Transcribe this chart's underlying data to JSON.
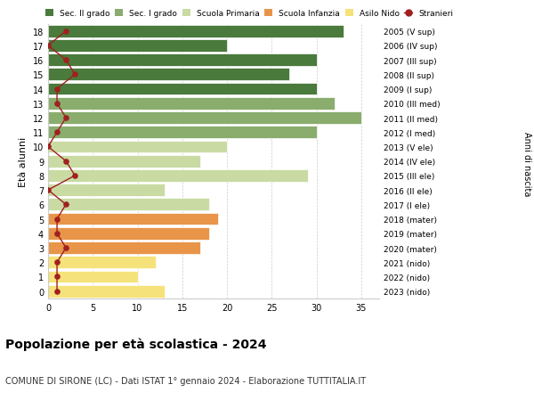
{
  "ages": [
    0,
    1,
    2,
    3,
    4,
    5,
    6,
    7,
    8,
    9,
    10,
    11,
    12,
    13,
    14,
    15,
    16,
    17,
    18
  ],
  "bar_values": [
    13,
    10,
    12,
    17,
    18,
    19,
    18,
    13,
    29,
    17,
    20,
    30,
    35,
    32,
    30,
    27,
    30,
    20,
    33
  ],
  "bar_colors": [
    "#f5e27a",
    "#f5e27a",
    "#f5e27a",
    "#e8954a",
    "#e8954a",
    "#e8954a",
    "#c9dba3",
    "#c9dba3",
    "#c9dba3",
    "#c9dba3",
    "#c9dba3",
    "#8aad6e",
    "#8aad6e",
    "#8aad6e",
    "#4a7a3c",
    "#4a7a3c",
    "#4a7a3c",
    "#4a7a3c",
    "#4a7a3c"
  ],
  "stranieri_values": [
    1,
    1,
    1,
    2,
    1,
    1,
    2,
    0,
    3,
    2,
    0,
    1,
    2,
    1,
    1,
    3,
    2,
    0,
    2
  ],
  "right_labels": [
    "2023 (nido)",
    "2022 (nido)",
    "2021 (nido)",
    "2020 (mater)",
    "2019 (mater)",
    "2018 (mater)",
    "2017 (I ele)",
    "2016 (II ele)",
    "2015 (III ele)",
    "2014 (IV ele)",
    "2013 (V ele)",
    "2012 (I med)",
    "2011 (II med)",
    "2010 (III med)",
    "2009 (I sup)",
    "2008 (II sup)",
    "2007 (III sup)",
    "2006 (IV sup)",
    "2005 (V sup)"
  ],
  "color_sec2": "#4a7a3c",
  "color_sec1": "#8aad6e",
  "color_prim": "#c9dba3",
  "color_infanzia": "#e8954a",
  "color_nido": "#f5e27a",
  "color_stranieri": "#a02020",
  "title": "Popolazione per età scolastica - 2024",
  "subtitle": "COMUNE DI SIRONE (LC) - Dati ISTAT 1° gennaio 2024 - Elaborazione TUTTITALIA.IT",
  "ylabel": "Età alunni",
  "right_ylabel": "Anni di nascita",
  "xlim": [
    0,
    37
  ],
  "background_color": "#ffffff",
  "grid_color": "#cccccc"
}
